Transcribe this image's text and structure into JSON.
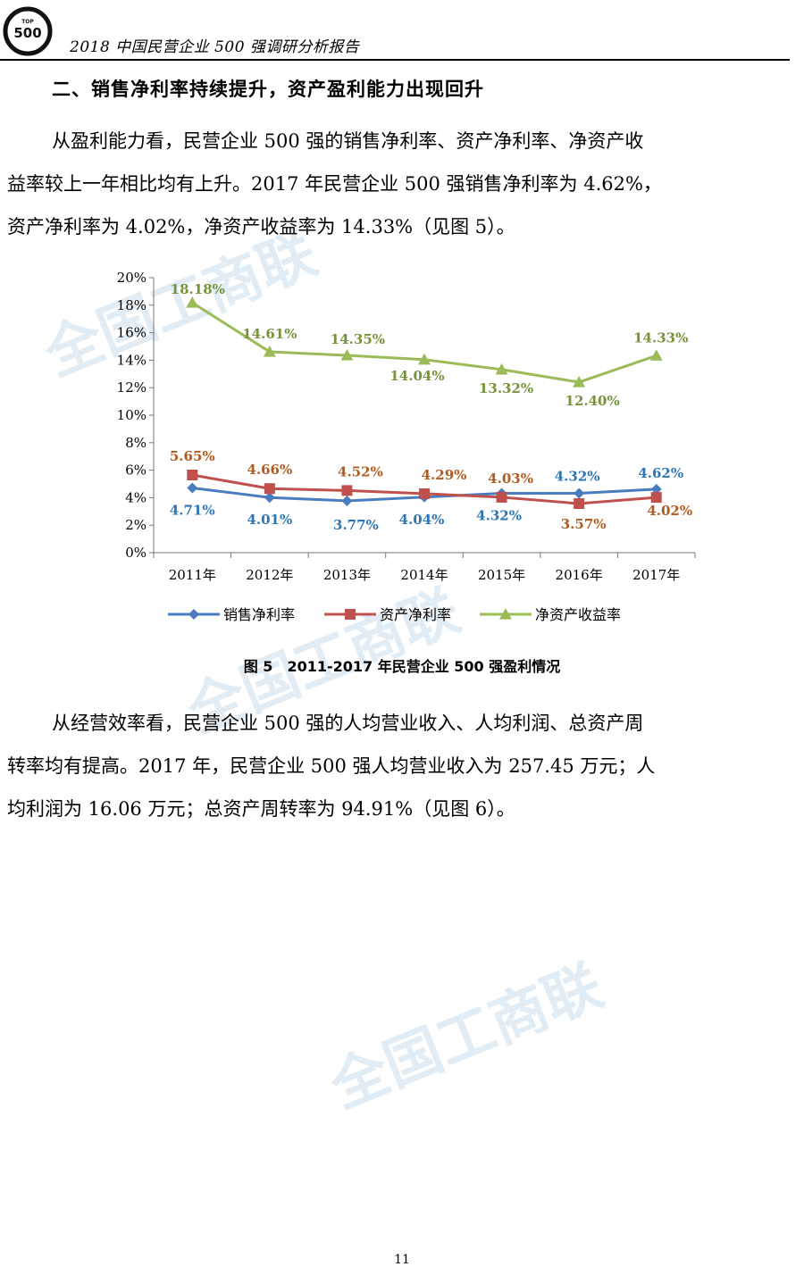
{
  "header": {
    "logo_top_text": "TOP",
    "logo_number": "500",
    "title": "2018 中国民营企业 500 强调研分析报告"
  },
  "section": {
    "heading": "二、销售净利率持续提升，资产盈利能力出现回升"
  },
  "paragraph1": {
    "lines": [
      "从盈利能力看，民营企业 500 强的销售净利率、资产净利率、净资产收",
      "益率较上一年相比均有上升。2017 年民营企业 500 强销售净利率为 4.62%，",
      "资产净利率为 4.02%，净资产收益率为 14.33%（见图 5）。"
    ]
  },
  "chart_data": {
    "type": "line",
    "title": "",
    "xlabel": "",
    "ylabel": "",
    "categories": [
      "2011年",
      "2012年",
      "2013年",
      "2014年",
      "2015年",
      "2016年",
      "2017年"
    ],
    "ylim": [
      0,
      20
    ],
    "yticks": [
      "0%",
      "2%",
      "4%",
      "6%",
      "8%",
      "10%",
      "12%",
      "14%",
      "16%",
      "18%",
      "20%"
    ],
    "grid": false,
    "legend_position": "bottom",
    "series": [
      {
        "name": "销售净利率",
        "color": "#4a7dbf",
        "label_color": "#2e75b6",
        "marker": "diamond",
        "values": [
          4.71,
          4.01,
          3.77,
          4.04,
          4.32,
          4.32,
          4.62
        ],
        "labels": [
          "4.71%",
          "4.01%",
          "3.77%",
          "4.04%",
          "4.32%",
          "4.32%",
          "4.62%"
        ]
      },
      {
        "name": "资产净利率",
        "color": "#c0504d",
        "label_color": "#b35a1f",
        "marker": "square",
        "values": [
          5.65,
          4.66,
          4.52,
          4.29,
          4.03,
          3.57,
          4.02
        ],
        "labels": [
          "5.65%",
          "4.66%",
          "4.52%",
          "4.29%",
          "4.03%",
          "3.57%",
          "4.02%"
        ]
      },
      {
        "name": "净资产收益率",
        "color": "#9bbb59",
        "label_color": "#76923c",
        "marker": "triangle",
        "values": [
          18.18,
          14.61,
          14.35,
          14.04,
          13.32,
          12.4,
          14.33
        ],
        "labels": [
          "18.18%",
          "14.61%",
          "14.35%",
          "14.04%",
          "13.32%",
          "12.40%",
          "14.33%"
        ]
      }
    ]
  },
  "figure": {
    "caption": "图 5　2011-2017 年民营企业 500 强盈利情况"
  },
  "paragraph2": {
    "lines": [
      "从经营效率看，民营企业 500 强的人均营业收入、人均利润、总资产周",
      "转率均有提高。2017 年，民营企业 500 强人均营业收入为 257.45 万元；人",
      "均利润为 16.06 万元；总资产周转率为 94.91%（见图 6）。"
    ]
  },
  "watermark": {
    "text": "全国工商联"
  },
  "page": {
    "number": "11"
  }
}
